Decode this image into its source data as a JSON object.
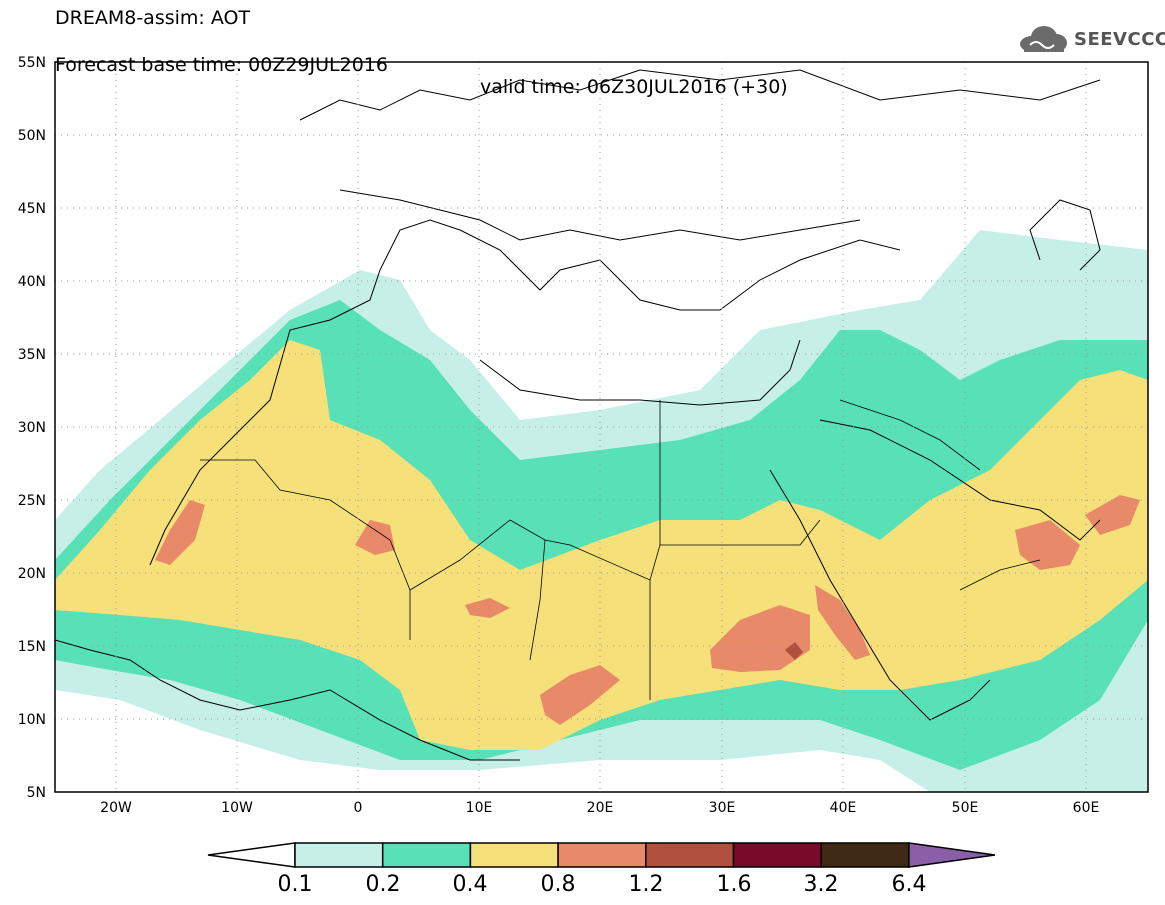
{
  "header": {
    "title": "DREAM8-assim: AOT",
    "base_time": "Forecast base time: 00Z29JUL2016",
    "valid_time": "valid time: 06Z30JUL2016 (+30)"
  },
  "logo": {
    "text": "SEEVCCC",
    "icon": "cloud-icon"
  },
  "map": {
    "lon_range": [
      -25,
      65
    ],
    "lat_range": [
      5,
      55
    ],
    "lat_ticks": [
      "55N",
      "50N",
      "45N",
      "40N",
      "35N",
      "30N",
      "25N",
      "20N",
      "15N",
      "10N",
      "5N"
    ],
    "lon_ticks": [
      "20W",
      "10W",
      "0",
      "10E",
      "20E",
      "30E",
      "40E",
      "50E",
      "60E"
    ],
    "gridlines": "dotted"
  },
  "colorbar": {
    "levels": [
      "0.1",
      "0.2",
      "0.4",
      "0.8",
      "1.2",
      "1.6",
      "3.2",
      "6.4"
    ],
    "colors": [
      "#ffffff",
      "#c6efe8",
      "#58e0b6",
      "#f5e07a",
      "#e8896a",
      "#b2503f",
      "#7a0a2a",
      "#3f2a18",
      "#8a5fa8"
    ]
  }
}
